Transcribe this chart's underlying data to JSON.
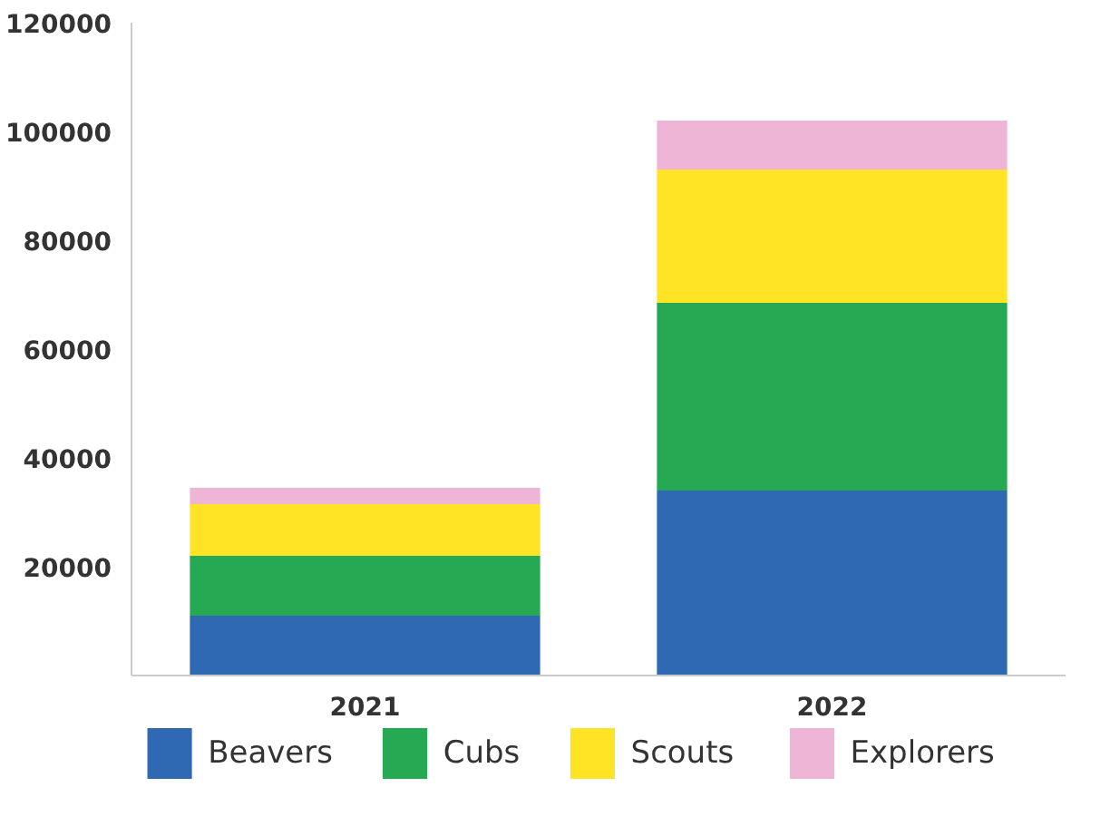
{
  "chart_data": {
    "type": "bar",
    "stacked": true,
    "categories": [
      "2021",
      "2022"
    ],
    "series": [
      {
        "name": "Beavers",
        "color": "#2f69b3",
        "values": [
          11000,
          34000
        ]
      },
      {
        "name": "Cubs",
        "color": "#25aa53",
        "values": [
          11000,
          34500
        ]
      },
      {
        "name": "Scouts",
        "color": "#fee424",
        "values": [
          9500,
          24500
        ]
      },
      {
        "name": "Explorers",
        "color": "#efb5d6",
        "values": [
          3000,
          9000
        ]
      }
    ],
    "ylim": [
      0,
      120000
    ],
    "yticks": [
      20000,
      40000,
      60000,
      80000,
      100000,
      120000
    ],
    "grid": false,
    "legend": "bottom"
  }
}
